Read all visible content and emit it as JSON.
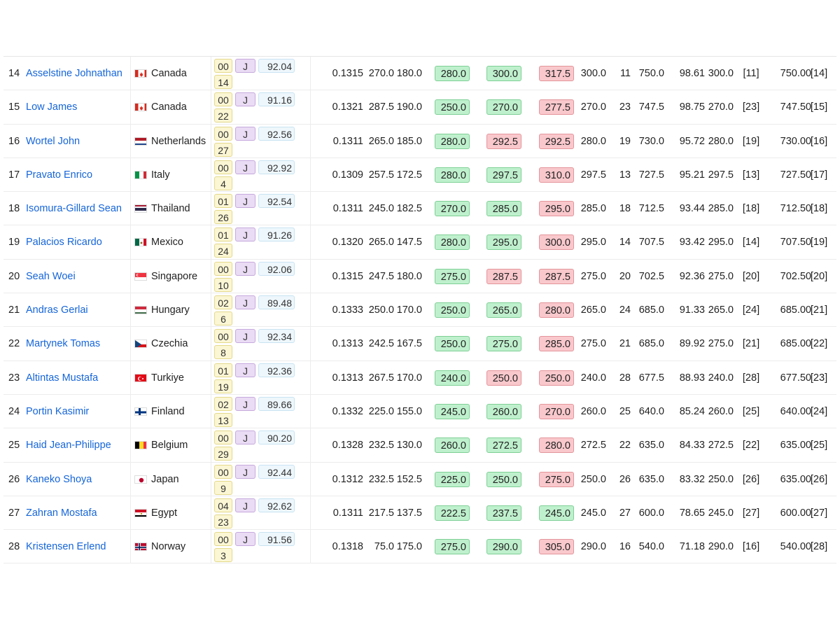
{
  "rows": [
    {
      "rank": "14",
      "name": "Asselstine Johnathan",
      "flag": "ca",
      "country": "Canada",
      "lot": "00",
      "cat": "J",
      "bw": "92.04",
      "sub": "14",
      "coef": "0.1315",
      "sq": "270.0",
      "bp": "180.0",
      "d1": {
        "v": "280.0",
        "ok": true
      },
      "d2": {
        "v": "300.0",
        "ok": true
      },
      "d3": {
        "v": "317.5",
        "ok": false
      },
      "best": "300.0",
      "rk1": "11",
      "total": "750.0",
      "pts": "98.61",
      "best2": "300.0",
      "rk2": "[11]",
      "total2": "750.00",
      "rk3": "[14]"
    },
    {
      "rank": "15",
      "name": "Low James",
      "flag": "ca",
      "country": "Canada",
      "lot": "00",
      "cat": "J",
      "bw": "91.16",
      "sub": "22",
      "coef": "0.1321",
      "sq": "287.5",
      "bp": "190.0",
      "d1": {
        "v": "250.0",
        "ok": true
      },
      "d2": {
        "v": "270.0",
        "ok": true
      },
      "d3": {
        "v": "277.5",
        "ok": false
      },
      "best": "270.0",
      "rk1": "23",
      "total": "747.5",
      "pts": "98.75",
      "best2": "270.0",
      "rk2": "[23]",
      "total2": "747.50",
      "rk3": "[15]"
    },
    {
      "rank": "16",
      "name": "Wortel John",
      "flag": "nl",
      "country": "Netherlands",
      "lot": "00",
      "cat": "J",
      "bw": "92.56",
      "sub": "27",
      "coef": "0.1311",
      "sq": "265.0",
      "bp": "185.0",
      "d1": {
        "v": "280.0",
        "ok": true
      },
      "d2": {
        "v": "292.5",
        "ok": false
      },
      "d3": {
        "v": "292.5",
        "ok": false
      },
      "best": "280.0",
      "rk1": "19",
      "total": "730.0",
      "pts": "95.72",
      "best2": "280.0",
      "rk2": "[19]",
      "total2": "730.00",
      "rk3": "[16]"
    },
    {
      "rank": "17",
      "name": "Pravato Enrico",
      "flag": "it",
      "country": "Italy",
      "lot": "00",
      "cat": "J",
      "bw": "92.92",
      "sub": "4",
      "coef": "0.1309",
      "sq": "257.5",
      "bp": "172.5",
      "d1": {
        "v": "280.0",
        "ok": true
      },
      "d2": {
        "v": "297.5",
        "ok": true
      },
      "d3": {
        "v": "310.0",
        "ok": false
      },
      "best": "297.5",
      "rk1": "13",
      "total": "727.5",
      "pts": "95.21",
      "best2": "297.5",
      "rk2": "[13]",
      "total2": "727.50",
      "rk3": "[17]"
    },
    {
      "rank": "18",
      "name": "Isomura-Gillard Sean",
      "flag": "th",
      "country": "Thailand",
      "lot": "01",
      "cat": "J",
      "bw": "92.54",
      "sub": "26",
      "coef": "0.1311",
      "sq": "245.0",
      "bp": "182.5",
      "d1": {
        "v": "270.0",
        "ok": true
      },
      "d2": {
        "v": "285.0",
        "ok": true
      },
      "d3": {
        "v": "295.0",
        "ok": false
      },
      "best": "285.0",
      "rk1": "18",
      "total": "712.5",
      "pts": "93.44",
      "best2": "285.0",
      "rk2": "[18]",
      "total2": "712.50",
      "rk3": "[18]"
    },
    {
      "rank": "19",
      "name": "Palacios Ricardo",
      "flag": "mx",
      "country": "Mexico",
      "lot": "01",
      "cat": "J",
      "bw": "91.26",
      "sub": "24",
      "coef": "0.1320",
      "sq": "265.0",
      "bp": "147.5",
      "d1": {
        "v": "280.0",
        "ok": true
      },
      "d2": {
        "v": "295.0",
        "ok": true
      },
      "d3": {
        "v": "300.0",
        "ok": false
      },
      "best": "295.0",
      "rk1": "14",
      "total": "707.5",
      "pts": "93.42",
      "best2": "295.0",
      "rk2": "[14]",
      "total2": "707.50",
      "rk3": "[19]"
    },
    {
      "rank": "20",
      "name": "Seah Woei",
      "flag": "sg",
      "country": "Singapore",
      "lot": "00",
      "cat": "J",
      "bw": "92.06",
      "sub": "10",
      "coef": "0.1315",
      "sq": "247.5",
      "bp": "180.0",
      "d1": {
        "v": "275.0",
        "ok": true
      },
      "d2": {
        "v": "287.5",
        "ok": false
      },
      "d3": {
        "v": "287.5",
        "ok": false
      },
      "best": "275.0",
      "rk1": "20",
      "total": "702.5",
      "pts": "92.36",
      "best2": "275.0",
      "rk2": "[20]",
      "total2": "702.50",
      "rk3": "[20]"
    },
    {
      "rank": "21",
      "name": "Andras Gerlai",
      "flag": "hu",
      "country": "Hungary",
      "lot": "02",
      "cat": "J",
      "bw": "89.48",
      "sub": "6",
      "coef": "0.1333",
      "sq": "250.0",
      "bp": "170.0",
      "d1": {
        "v": "250.0",
        "ok": true
      },
      "d2": {
        "v": "265.0",
        "ok": true
      },
      "d3": {
        "v": "280.0",
        "ok": false
      },
      "best": "265.0",
      "rk1": "24",
      "total": "685.0",
      "pts": "91.33",
      "best2": "265.0",
      "rk2": "[24]",
      "total2": "685.00",
      "rk3": "[21]"
    },
    {
      "rank": "22",
      "name": "Martynek Tomas",
      "flag": "cz",
      "country": "Czechia",
      "lot": "00",
      "cat": "J",
      "bw": "92.34",
      "sub": "8",
      "coef": "0.1313",
      "sq": "242.5",
      "bp": "167.5",
      "d1": {
        "v": "250.0",
        "ok": true
      },
      "d2": {
        "v": "275.0",
        "ok": true
      },
      "d3": {
        "v": "285.0",
        "ok": false
      },
      "best": "275.0",
      "rk1": "21",
      "total": "685.0",
      "pts": "89.92",
      "best2": "275.0",
      "rk2": "[21]",
      "total2": "685.00",
      "rk3": "[22]"
    },
    {
      "rank": "23",
      "name": "Altintas Mustafa",
      "flag": "tr",
      "country": "Turkiye",
      "lot": "01",
      "cat": "J",
      "bw": "92.36",
      "sub": "19",
      "coef": "0.1313",
      "sq": "267.5",
      "bp": "170.0",
      "d1": {
        "v": "240.0",
        "ok": true
      },
      "d2": {
        "v": "250.0",
        "ok": false
      },
      "d3": {
        "v": "250.0",
        "ok": false
      },
      "best": "240.0",
      "rk1": "28",
      "total": "677.5",
      "pts": "88.93",
      "best2": "240.0",
      "rk2": "[28]",
      "total2": "677.50",
      "rk3": "[23]"
    },
    {
      "rank": "24",
      "name": "Portin Kasimir",
      "flag": "fi",
      "country": "Finland",
      "lot": "02",
      "cat": "J",
      "bw": "89.66",
      "sub": "13",
      "coef": "0.1332",
      "sq": "225.0",
      "bp": "155.0",
      "d1": {
        "v": "245.0",
        "ok": true
      },
      "d2": {
        "v": "260.0",
        "ok": true
      },
      "d3": {
        "v": "270.0",
        "ok": false
      },
      "best": "260.0",
      "rk1": "25",
      "total": "640.0",
      "pts": "85.24",
      "best2": "260.0",
      "rk2": "[25]",
      "total2": "640.00",
      "rk3": "[24]"
    },
    {
      "rank": "25",
      "name": "Haid Jean-Philippe",
      "flag": "be",
      "country": "Belgium",
      "lot": "00",
      "cat": "J",
      "bw": "90.20",
      "sub": "29",
      "coef": "0.1328",
      "sq": "232.5",
      "bp": "130.0",
      "d1": {
        "v": "260.0",
        "ok": true
      },
      "d2": {
        "v": "272.5",
        "ok": true
      },
      "d3": {
        "v": "280.0",
        "ok": false
      },
      "best": "272.5",
      "rk1": "22",
      "total": "635.0",
      "pts": "84.33",
      "best2": "272.5",
      "rk2": "[22]",
      "total2": "635.00",
      "rk3": "[25]"
    },
    {
      "rank": "26",
      "name": "Kaneko Shoya",
      "flag": "jp",
      "country": "Japan",
      "lot": "00",
      "cat": "J",
      "bw": "92.44",
      "sub": "9",
      "coef": "0.1312",
      "sq": "232.5",
      "bp": "152.5",
      "d1": {
        "v": "225.0",
        "ok": true
      },
      "d2": {
        "v": "250.0",
        "ok": true
      },
      "d3": {
        "v": "275.0",
        "ok": false
      },
      "best": "250.0",
      "rk1": "26",
      "total": "635.0",
      "pts": "83.32",
      "best2": "250.0",
      "rk2": "[26]",
      "total2": "635.00",
      "rk3": "[26]"
    },
    {
      "rank": "27",
      "name": "Zahran Mostafa",
      "flag": "eg",
      "country": "Egypt",
      "lot": "04",
      "cat": "J",
      "bw": "92.62",
      "sub": "23",
      "coef": "0.1311",
      "sq": "217.5",
      "bp": "137.5",
      "d1": {
        "v": "222.5",
        "ok": true
      },
      "d2": {
        "v": "237.5",
        "ok": true
      },
      "d3": {
        "v": "245.0",
        "ok": true
      },
      "best": "245.0",
      "rk1": "27",
      "total": "600.0",
      "pts": "78.65",
      "best2": "245.0",
      "rk2": "[27]",
      "total2": "600.00",
      "rk3": "[27]"
    },
    {
      "rank": "28",
      "name": "Kristensen Erlend",
      "flag": "no",
      "country": "Norway",
      "lot": "00",
      "cat": "J",
      "bw": "91.56",
      "sub": "3",
      "coef": "0.1318",
      "sq": "75.0",
      "bp": "175.0",
      "d1": {
        "v": "275.0",
        "ok": true
      },
      "d2": {
        "v": "290.0",
        "ok": true
      },
      "d3": {
        "v": "305.0",
        "ok": false
      },
      "best": "290.0",
      "rk1": "16",
      "total": "540.0",
      "pts": "71.18",
      "best2": "290.0",
      "rk2": "[16]",
      "total2": "540.00",
      "rk3": "[28]"
    }
  ],
  "colors": {
    "link": "#1565d8",
    "good_attempt": "#bff0cd",
    "bad_attempt": "#f9c8cc",
    "category_badge": "#eadcf4",
    "lot_badge": "#fbf6d4",
    "bodyweight_badge": "#eef7fc"
  }
}
